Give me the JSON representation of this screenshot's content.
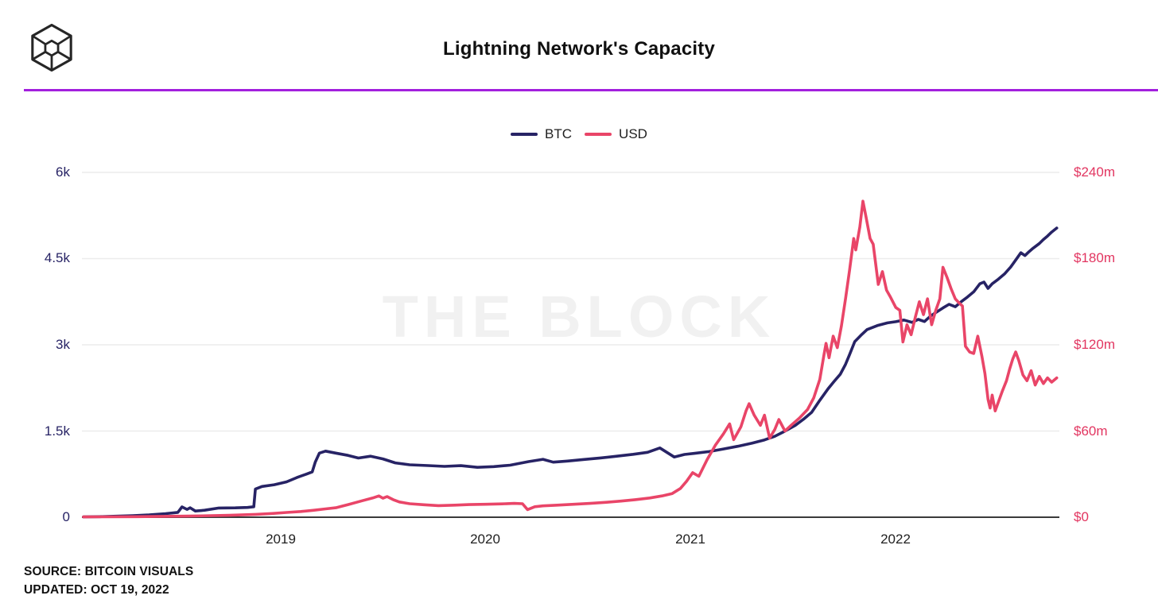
{
  "header": {
    "title": "Lightning Network's Capacity",
    "logo": "the-block-cube-logo"
  },
  "divider_color": "#a21fdd",
  "watermark": "THE BLOCK",
  "footer": {
    "source": "SOURCE: BITCOIN VISUALS",
    "updated": "UPDATED: OCT 19, 2022"
  },
  "chart_data": {
    "type": "line",
    "title": "Lightning Network's Capacity",
    "grid": "horizontal",
    "legend_position": "top-center",
    "x_axis": {
      "range": [
        2018.04,
        2022.79
      ],
      "tick_values": [
        2019,
        2020,
        2021,
        2022
      ],
      "tick_labels": [
        "2019",
        "2020",
        "2021",
        "2022"
      ]
    },
    "y_axis_left": {
      "range": [
        0,
        6000
      ],
      "tick_values": [
        6000,
        4500,
        3000,
        1500,
        0
      ],
      "tick_labels": [
        "6k",
        "4.5k",
        "3k",
        "1.5k",
        "0"
      ],
      "color": "#272365"
    },
    "y_axis_right": {
      "range": [
        0,
        240
      ],
      "tick_values": [
        240,
        180,
        120,
        60,
        0
      ],
      "tick_labels": [
        "$240m",
        "$180m",
        "$120m",
        "$60m",
        "$0"
      ],
      "color": "#e23560"
    },
    "series": [
      {
        "name": "BTC",
        "axis": "left",
        "unit": "BTC",
        "color": "#272365",
        "points": [
          [
            2018.04,
            5
          ],
          [
            2018.12,
            10
          ],
          [
            2018.2,
            18
          ],
          [
            2018.28,
            28
          ],
          [
            2018.36,
            40
          ],
          [
            2018.44,
            62
          ],
          [
            2018.5,
            85
          ],
          [
            2018.52,
            180
          ],
          [
            2018.545,
            135
          ],
          [
            2018.56,
            165
          ],
          [
            2018.585,
            108
          ],
          [
            2018.63,
            122
          ],
          [
            2018.7,
            160
          ],
          [
            2018.78,
            163
          ],
          [
            2018.84,
            170
          ],
          [
            2018.87,
            183
          ],
          [
            2018.878,
            490
          ],
          [
            2018.91,
            535
          ],
          [
            2018.97,
            565
          ],
          [
            2019.03,
            615
          ],
          [
            2019.08,
            690
          ],
          [
            2019.13,
            755
          ],
          [
            2019.155,
            790
          ],
          [
            2019.17,
            960
          ],
          [
            2019.19,
            1115
          ],
          [
            2019.22,
            1150
          ],
          [
            2019.27,
            1115
          ],
          [
            2019.33,
            1075
          ],
          [
            2019.38,
            1030
          ],
          [
            2019.44,
            1062
          ],
          [
            2019.5,
            1015
          ],
          [
            2019.56,
            945
          ],
          [
            2019.63,
            912
          ],
          [
            2019.72,
            898
          ],
          [
            2019.8,
            885
          ],
          [
            2019.88,
            897
          ],
          [
            2019.96,
            868
          ],
          [
            2020.04,
            880
          ],
          [
            2020.12,
            905
          ],
          [
            2020.21,
            968
          ],
          [
            2020.28,
            1008
          ],
          [
            2020.33,
            958
          ],
          [
            2020.4,
            978
          ],
          [
            2020.48,
            1005
          ],
          [
            2020.56,
            1032
          ],
          [
            2020.64,
            1062
          ],
          [
            2020.72,
            1095
          ],
          [
            2020.79,
            1130
          ],
          [
            2020.85,
            1205
          ],
          [
            2020.92,
            1048
          ],
          [
            2020.97,
            1092
          ],
          [
            2021.02,
            1112
          ],
          [
            2021.09,
            1142
          ],
          [
            2021.16,
            1188
          ],
          [
            2021.23,
            1235
          ],
          [
            2021.3,
            1288
          ],
          [
            2021.36,
            1345
          ],
          [
            2021.41,
            1408
          ],
          [
            2021.46,
            1498
          ],
          [
            2021.51,
            1598
          ],
          [
            2021.55,
            1705
          ],
          [
            2021.59,
            1825
          ],
          [
            2021.63,
            2035
          ],
          [
            2021.67,
            2235
          ],
          [
            2021.7,
            2365
          ],
          [
            2021.73,
            2490
          ],
          [
            2021.755,
            2660
          ],
          [
            2021.775,
            2830
          ],
          [
            2021.8,
            3055
          ],
          [
            2021.83,
            3165
          ],
          [
            2021.86,
            3265
          ],
          [
            2021.91,
            3335
          ],
          [
            2021.96,
            3382
          ],
          [
            2022.0,
            3402
          ],
          [
            2022.04,
            3432
          ],
          [
            2022.08,
            3390
          ],
          [
            2022.11,
            3442
          ],
          [
            2022.14,
            3405
          ],
          [
            2022.17,
            3502
          ],
          [
            2022.2,
            3572
          ],
          [
            2022.23,
            3642
          ],
          [
            2022.26,
            3705
          ],
          [
            2022.29,
            3662
          ],
          [
            2022.32,
            3752
          ],
          [
            2022.35,
            3832
          ],
          [
            2022.38,
            3922
          ],
          [
            2022.41,
            4062
          ],
          [
            2022.43,
            4092
          ],
          [
            2022.45,
            3982
          ],
          [
            2022.47,
            4062
          ],
          [
            2022.5,
            4142
          ],
          [
            2022.53,
            4232
          ],
          [
            2022.56,
            4352
          ],
          [
            2022.59,
            4502
          ],
          [
            2022.61,
            4602
          ],
          [
            2022.63,
            4552
          ],
          [
            2022.65,
            4622
          ],
          [
            2022.67,
            4682
          ],
          [
            2022.7,
            4762
          ],
          [
            2022.72,
            4832
          ],
          [
            2022.74,
            4892
          ],
          [
            2022.76,
            4962
          ],
          [
            2022.785,
            5032
          ]
        ]
      },
      {
        "name": "USD",
        "axis": "right",
        "unit": "USD millions",
        "color": "#e94568",
        "points": [
          [
            2018.04,
            0.2
          ],
          [
            2018.3,
            0.4
          ],
          [
            2018.55,
            0.8
          ],
          [
            2018.75,
            1.3
          ],
          [
            2018.88,
            2.0
          ],
          [
            2018.96,
            2.6
          ],
          [
            2019.03,
            3.3
          ],
          [
            2019.1,
            4.0
          ],
          [
            2019.16,
            4.8
          ],
          [
            2019.22,
            5.8
          ],
          [
            2019.27,
            6.6
          ],
          [
            2019.33,
            8.8
          ],
          [
            2019.4,
            11.5
          ],
          [
            2019.45,
            13.4
          ],
          [
            2019.48,
            14.8
          ],
          [
            2019.5,
            13.2
          ],
          [
            2019.52,
            14.4
          ],
          [
            2019.55,
            12.2
          ],
          [
            2019.58,
            10.6
          ],
          [
            2019.63,
            9.4
          ],
          [
            2019.7,
            8.7
          ],
          [
            2019.77,
            8.1
          ],
          [
            2019.85,
            8.4
          ],
          [
            2019.92,
            8.8
          ],
          [
            2020.0,
            9.0
          ],
          [
            2020.08,
            9.3
          ],
          [
            2020.14,
            9.6
          ],
          [
            2020.18,
            9.4
          ],
          [
            2020.205,
            5.3
          ],
          [
            2020.24,
            7.3
          ],
          [
            2020.28,
            7.9
          ],
          [
            2020.35,
            8.4
          ],
          [
            2020.43,
            9.0
          ],
          [
            2020.51,
            9.6
          ],
          [
            2020.59,
            10.4
          ],
          [
            2020.66,
            11.2
          ],
          [
            2020.73,
            12.2
          ],
          [
            2020.8,
            13.4
          ],
          [
            2020.86,
            14.8
          ],
          [
            2020.91,
            16.5
          ],
          [
            2020.95,
            20.0
          ],
          [
            2020.98,
            25.0
          ],
          [
            2021.01,
            31.0
          ],
          [
            2021.04,
            28.5
          ],
          [
            2021.08,
            40.0
          ],
          [
            2021.12,
            50.0
          ],
          [
            2021.16,
            58.0
          ],
          [
            2021.19,
            65.0
          ],
          [
            2021.21,
            54.0
          ],
          [
            2021.245,
            63.0
          ],
          [
            2021.27,
            74.0
          ],
          [
            2021.285,
            79.0
          ],
          [
            2021.31,
            71.0
          ],
          [
            2021.34,
            64.0
          ],
          [
            2021.36,
            71.0
          ],
          [
            2021.385,
            55.0
          ],
          [
            2021.41,
            61.0
          ],
          [
            2021.43,
            68.0
          ],
          [
            2021.46,
            60.0
          ],
          [
            2021.49,
            64.0
          ],
          [
            2021.53,
            69.0
          ],
          [
            2021.57,
            75.0
          ],
          [
            2021.6,
            83.0
          ],
          [
            2021.63,
            96.0
          ],
          [
            2021.65,
            113.0
          ],
          [
            2021.66,
            121.0
          ],
          [
            2021.675,
            111.0
          ],
          [
            2021.695,
            126.0
          ],
          [
            2021.715,
            118.0
          ],
          [
            2021.735,
            133.0
          ],
          [
            2021.755,
            152.0
          ],
          [
            2021.775,
            172.0
          ],
          [
            2021.795,
            194.0
          ],
          [
            2021.805,
            186.0
          ],
          [
            2021.825,
            202.0
          ],
          [
            2021.84,
            220.0
          ],
          [
            2021.855,
            209.0
          ],
          [
            2021.875,
            194.0
          ],
          [
            2021.89,
            190.0
          ],
          [
            2021.915,
            162.0
          ],
          [
            2021.935,
            171.0
          ],
          [
            2021.955,
            158.0
          ],
          [
            2021.975,
            153.0
          ],
          [
            2022.0,
            146.0
          ],
          [
            2022.02,
            144.0
          ],
          [
            2022.035,
            122.0
          ],
          [
            2022.055,
            134.0
          ],
          [
            2022.075,
            127.0
          ],
          [
            2022.095,
            139.0
          ],
          [
            2022.115,
            150.0
          ],
          [
            2022.135,
            141.0
          ],
          [
            2022.155,
            152.0
          ],
          [
            2022.175,
            134.0
          ],
          [
            2022.195,
            144.0
          ],
          [
            2022.215,
            152.0
          ],
          [
            2022.23,
            174.0
          ],
          [
            2022.25,
            167.0
          ],
          [
            2022.27,
            159.0
          ],
          [
            2022.29,
            152.0
          ],
          [
            2022.31,
            149.0
          ],
          [
            2022.325,
            147.0
          ],
          [
            2022.34,
            119.0
          ],
          [
            2022.36,
            115.0
          ],
          [
            2022.38,
            114.0
          ],
          [
            2022.4,
            126.0
          ],
          [
            2022.42,
            112.0
          ],
          [
            2022.435,
            100.0
          ],
          [
            2022.45,
            82.0
          ],
          [
            2022.46,
            76.0
          ],
          [
            2022.47,
            85.0
          ],
          [
            2022.485,
            74.0
          ],
          [
            2022.5,
            80.0
          ],
          [
            2022.52,
            88.0
          ],
          [
            2022.54,
            95.0
          ],
          [
            2022.555,
            103.0
          ],
          [
            2022.57,
            110.0
          ],
          [
            2022.585,
            115.0
          ],
          [
            2022.6,
            109.0
          ],
          [
            2022.62,
            99.0
          ],
          [
            2022.64,
            95.0
          ],
          [
            2022.66,
            102.0
          ],
          [
            2022.68,
            92.0
          ],
          [
            2022.7,
            98.0
          ],
          [
            2022.72,
            93.0
          ],
          [
            2022.74,
            97.0
          ],
          [
            2022.76,
            94.0
          ],
          [
            2022.785,
            97.0
          ]
        ]
      }
    ]
  }
}
